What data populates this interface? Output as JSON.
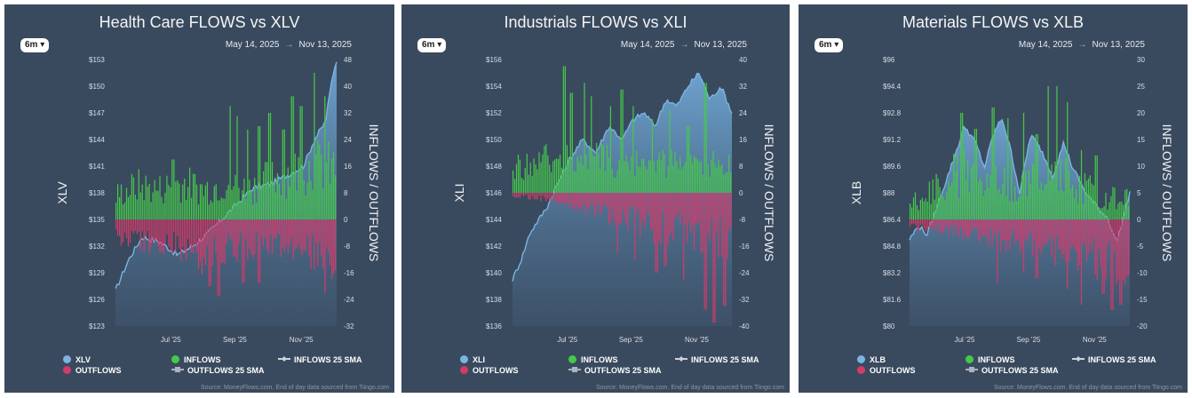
{
  "source_text": "Source: MoneyFlows.com. End of day data sourced from Tiingo.com",
  "legend": {
    "inflows": "INFLOWS",
    "outflows": "OUTFLOWS",
    "inflows_sma": "INFLOWS 25 SMA",
    "outflows_sma": "OUTFLOWS 25 SMA"
  },
  "colors": {
    "inflow": "#45c94a",
    "outflow": "#d43a6a",
    "price": "#7ab4e0",
    "panel_bg": "#3a4a5e"
  },
  "chart_data": [
    {
      "type": "bar+area",
      "title": "Health Care FLOWS vs XLV",
      "ticker": "XLV",
      "range_button": "6m",
      "date_start": "May 14, 2025",
      "date_end": "Nov 13, 2025",
      "xlabel": "",
      "y_left_label": "XLV",
      "y_right_label": "INFLOWS / OUTFLOWS",
      "x_ticks": [
        "Jul '25",
        "Sep '25",
        "Nov '25"
      ],
      "y_left_ticks": [
        "$153",
        "$150",
        "$147",
        "$144",
        "$141",
        "$138",
        "$135",
        "$132",
        "$129",
        "$126",
        "$123"
      ],
      "y_right_ticks": [
        "48",
        "40",
        "32",
        "24",
        "16",
        "8",
        "0",
        "-8",
        "-16",
        "-24",
        "-32"
      ],
      "price_range": [
        123,
        153
      ],
      "flow_range": [
        -32,
        48
      ],
      "price_keypoints": [
        [
          0,
          127
        ],
        [
          0.06,
          130.5
        ],
        [
          0.12,
          133
        ],
        [
          0.2,
          132.5
        ],
        [
          0.28,
          131
        ],
        [
          0.35,
          132
        ],
        [
          0.42,
          133.5
        ],
        [
          0.5,
          135.5
        ],
        [
          0.56,
          137
        ],
        [
          0.62,
          138.5
        ],
        [
          0.7,
          139
        ],
        [
          0.78,
          140
        ],
        [
          0.85,
          141
        ],
        [
          0.9,
          144
        ],
        [
          0.95,
          146
        ],
        [
          0.98,
          151
        ],
        [
          1,
          153
        ]
      ],
      "inflow_keypoints": [
        [
          0,
          7
        ],
        [
          0.1,
          10
        ],
        [
          0.2,
          9
        ],
        [
          0.3,
          11
        ],
        [
          0.4,
          9
        ],
        [
          0.5,
          11
        ],
        [
          0.6,
          9
        ],
        [
          0.7,
          12
        ],
        [
          0.8,
          14
        ],
        [
          0.9,
          16
        ],
        [
          1,
          15
        ]
      ],
      "outflow_keypoints": [
        [
          0,
          -5
        ],
        [
          0.15,
          -7
        ],
        [
          0.3,
          -8
        ],
        [
          0.4,
          -12
        ],
        [
          0.5,
          -9
        ],
        [
          0.6,
          -8
        ],
        [
          0.7,
          -7
        ],
        [
          0.8,
          -8
        ],
        [
          0.9,
          -10
        ],
        [
          1,
          -12
        ]
      ],
      "inflow_spikes": [
        [
          0.26,
          18
        ],
        [
          0.52,
          34
        ],
        [
          0.55,
          31
        ],
        [
          0.6,
          27
        ],
        [
          0.65,
          28
        ],
        [
          0.7,
          32
        ],
        [
          0.76,
          27
        ],
        [
          0.8,
          37
        ],
        [
          0.84,
          34
        ],
        [
          0.9,
          44
        ],
        [
          0.95,
          37
        ]
      ],
      "outflow_spikes": [
        [
          0.43,
          -20
        ],
        [
          0.47,
          -23
        ],
        [
          0.58,
          -19
        ],
        [
          0.65,
          -19
        ],
        [
          0.9,
          -15
        ],
        [
          0.95,
          -22
        ],
        [
          0.98,
          -18
        ]
      ]
    },
    {
      "type": "bar+area",
      "title": "Industrials FLOWS vs XLI",
      "ticker": "XLI",
      "range_button": "6m",
      "date_start": "May 14, 2025",
      "date_end": "Nov 13, 2025",
      "xlabel": "",
      "y_left_label": "XLI",
      "y_right_label": "INFLOWS / OUTFLOWS",
      "x_ticks": [
        "Jul '25",
        "Sep '25",
        "Nov '25"
      ],
      "y_left_ticks": [
        "$156",
        "$154",
        "$152",
        "$150",
        "$148",
        "$146",
        "$144",
        "$142",
        "$140",
        "$138",
        "$136"
      ],
      "y_right_ticks": [
        "40",
        "32",
        "24",
        "16",
        "8",
        "0",
        "-8",
        "-16",
        "-24",
        "-32",
        "-40"
      ],
      "price_range": [
        136,
        156
      ],
      "flow_range": [
        -40,
        40
      ],
      "price_keypoints": [
        [
          0,
          139.5
        ],
        [
          0.04,
          141
        ],
        [
          0.08,
          143
        ],
        [
          0.12,
          144
        ],
        [
          0.16,
          145
        ],
        [
          0.2,
          146.5
        ],
        [
          0.26,
          148.5
        ],
        [
          0.32,
          150
        ],
        [
          0.38,
          149
        ],
        [
          0.44,
          151
        ],
        [
          0.5,
          150
        ],
        [
          0.55,
          151.5
        ],
        [
          0.6,
          152
        ],
        [
          0.65,
          151
        ],
        [
          0.7,
          153
        ],
        [
          0.75,
          152.5
        ],
        [
          0.8,
          154
        ],
        [
          0.85,
          155
        ],
        [
          0.9,
          153
        ],
        [
          0.95,
          154
        ],
        [
          1,
          152
        ]
      ],
      "inflow_keypoints": [
        [
          0,
          8
        ],
        [
          0.1,
          9
        ],
        [
          0.2,
          11
        ],
        [
          0.3,
          12
        ],
        [
          0.4,
          10
        ],
        [
          0.5,
          9
        ],
        [
          0.6,
          8
        ],
        [
          0.7,
          9
        ],
        [
          0.8,
          8
        ],
        [
          0.9,
          10
        ],
        [
          1,
          8
        ]
      ],
      "outflow_keypoints": [
        [
          0,
          -1
        ],
        [
          0.2,
          -2
        ],
        [
          0.3,
          -4
        ],
        [
          0.4,
          -6
        ],
        [
          0.5,
          -8
        ],
        [
          0.6,
          -10
        ],
        [
          0.7,
          -11
        ],
        [
          0.8,
          -12
        ],
        [
          0.9,
          -13
        ],
        [
          1,
          -14
        ]
      ],
      "inflow_spikes": [
        [
          0.24,
          38
        ],
        [
          0.27,
          30
        ],
        [
          0.33,
          33
        ],
        [
          0.36,
          29
        ],
        [
          0.45,
          26
        ],
        [
          0.5,
          31
        ],
        [
          0.55,
          26
        ],
        [
          0.64,
          22
        ],
        [
          0.72,
          25
        ],
        [
          0.8,
          20
        ],
        [
          0.88,
          33
        ]
      ],
      "outflow_spikes": [
        [
          0.48,
          -18
        ],
        [
          0.56,
          -20
        ],
        [
          0.66,
          -24
        ],
        [
          0.7,
          -22
        ],
        [
          0.78,
          -26
        ],
        [
          0.88,
          -35
        ],
        [
          0.92,
          -39
        ],
        [
          0.97,
          -34
        ]
      ]
    },
    {
      "type": "bar+area",
      "title": "Materials FLOWS vs XLB",
      "ticker": "XLB",
      "range_button": "6m",
      "date_start": "May 14, 2025",
      "date_end": "Nov 13, 2025",
      "xlabel": "",
      "y_left_label": "XLB",
      "y_right_label": "INFLOWS / OUTFLOWS",
      "x_ticks": [
        "Jul '25",
        "Sep '25",
        "Nov '25"
      ],
      "y_left_ticks": [
        "$96",
        "$94.4",
        "$92.8",
        "$91.2",
        "$89.6",
        "$88",
        "$86.4",
        "$84.8",
        "$83.2",
        "$81.6",
        "$80"
      ],
      "y_right_ticks": [
        "30",
        "25",
        "20",
        "15",
        "10",
        "5",
        "0",
        "-5",
        "-10",
        "-15",
        "-20"
      ],
      "price_range": [
        80,
        96
      ],
      "flow_range": [
        -20,
        30
      ],
      "price_keypoints": [
        [
          0,
          85.2
        ],
        [
          0.04,
          86
        ],
        [
          0.08,
          85.5
        ],
        [
          0.12,
          87
        ],
        [
          0.16,
          88.5
        ],
        [
          0.2,
          90
        ],
        [
          0.25,
          92
        ],
        [
          0.3,
          91
        ],
        [
          0.34,
          89.5
        ],
        [
          0.38,
          91.5
        ],
        [
          0.42,
          92.5
        ],
        [
          0.46,
          90.5
        ],
        [
          0.5,
          88
        ],
        [
          0.55,
          91.5
        ],
        [
          0.6,
          90.5
        ],
        [
          0.65,
          89
        ],
        [
          0.7,
          91
        ],
        [
          0.74,
          89.5
        ],
        [
          0.8,
          88
        ],
        [
          0.86,
          87
        ],
        [
          0.9,
          86.5
        ],
        [
          0.94,
          85
        ],
        [
          0.97,
          86.5
        ],
        [
          1,
          88
        ]
      ],
      "inflow_keypoints": [
        [
          0,
          3
        ],
        [
          0.1,
          5
        ],
        [
          0.2,
          8
        ],
        [
          0.3,
          9
        ],
        [
          0.4,
          8
        ],
        [
          0.5,
          7
        ],
        [
          0.6,
          8
        ],
        [
          0.7,
          8
        ],
        [
          0.8,
          6
        ],
        [
          0.9,
          4
        ],
        [
          1,
          4
        ]
      ],
      "outflow_keypoints": [
        [
          0,
          -1
        ],
        [
          0.1,
          -2
        ],
        [
          0.2,
          -2
        ],
        [
          0.3,
          -3
        ],
        [
          0.4,
          -4
        ],
        [
          0.5,
          -4
        ],
        [
          0.6,
          -5
        ],
        [
          0.7,
          -6
        ],
        [
          0.8,
          -7
        ],
        [
          0.9,
          -8
        ],
        [
          1,
          -8
        ]
      ],
      "inflow_spikes": [
        [
          0.24,
          20
        ],
        [
          0.3,
          17
        ],
        [
          0.38,
          21
        ],
        [
          0.45,
          19
        ],
        [
          0.52,
          20
        ],
        [
          0.58,
          16
        ],
        [
          0.63,
          25
        ],
        [
          0.67,
          25
        ],
        [
          0.72,
          22
        ],
        [
          0.78,
          13
        ],
        [
          0.85,
          12
        ]
      ],
      "outflow_spikes": [
        [
          0.4,
          -12
        ],
        [
          0.52,
          -10
        ],
        [
          0.58,
          -11
        ],
        [
          0.72,
          -13
        ],
        [
          0.78,
          -16
        ],
        [
          0.88,
          -14
        ],
        [
          0.92,
          -17
        ],
        [
          0.96,
          -16
        ]
      ]
    }
  ]
}
